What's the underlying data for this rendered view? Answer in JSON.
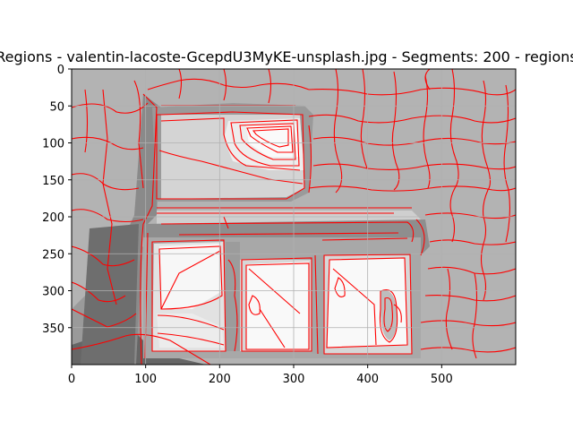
{
  "chart_data": {
    "type": "heatmap",
    "title": "Regions - valentin-lacoste-GcepdU3MyKE-unsplash.jpg - Segments: 200 - regions",
    "xlabel": "",
    "ylabel": "",
    "xlim": [
      0,
      600
    ],
    "ylim": [
      400,
      0
    ],
    "x_ticks": [
      0,
      100,
      200,
      300,
      400,
      500
    ],
    "y_ticks": [
      0,
      50,
      100,
      150,
      200,
      250,
      300,
      350
    ],
    "grid": true,
    "boundary_color": "#ff0000",
    "region_colors": {
      "dark": "#5a5a5a",
      "darkgray": "#8a8a8a",
      "gray": "#b5b5b5",
      "light": "#d2d2d2",
      "lighter": "#e6e6e6",
      "white": "#f7f7f7"
    }
  }
}
